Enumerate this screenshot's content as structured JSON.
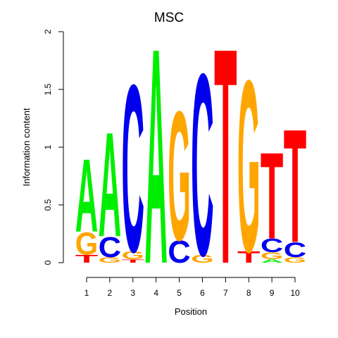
{
  "chart_data": {
    "type": "sequence-logo",
    "title": "MSC",
    "xlabel": "Position",
    "ylabel": "Information content",
    "ylim": [
      0,
      2
    ],
    "yticks": [
      "0",
      "0.5",
      "1",
      "1.5",
      "2"
    ],
    "ytick_values": [
      0,
      0.5,
      1,
      1.5,
      2
    ],
    "xticks": [
      "1",
      "2",
      "3",
      "4",
      "5",
      "6",
      "7",
      "8",
      "9",
      "10"
    ],
    "colors": {
      "A": "#00ee00",
      "C": "#0000ee",
      "G": "#ffa500",
      "T": "#ff0000"
    },
    "positions": [
      {
        "position": 1,
        "letters": [
          {
            "base": "T",
            "height": 0.07
          },
          {
            "base": "G",
            "height": 0.2
          },
          {
            "base": "A",
            "height": 0.65
          }
        ]
      },
      {
        "position": 2,
        "letters": [
          {
            "base": "G",
            "height": 0.05
          },
          {
            "base": "C",
            "height": 0.18
          },
          {
            "base": "A",
            "height": 0.93
          }
        ]
      },
      {
        "position": 3,
        "letters": [
          {
            "base": "T",
            "height": 0.03
          },
          {
            "base": "G",
            "height": 0.07
          },
          {
            "base": "C",
            "height": 1.49
          }
        ]
      },
      {
        "position": 4,
        "letters": [
          {
            "base": "A",
            "height": 1.92
          }
        ]
      },
      {
        "position": 5,
        "letters": [
          {
            "base": "C",
            "height": 0.2
          },
          {
            "base": "G",
            "height": 1.15
          }
        ]
      },
      {
        "position": 6,
        "letters": [
          {
            "base": "G",
            "height": 0.07
          },
          {
            "base": "C",
            "height": 1.62
          }
        ]
      },
      {
        "position": 7,
        "letters": [
          {
            "base": "T",
            "height": 1.92
          }
        ]
      },
      {
        "position": 8,
        "letters": [
          {
            "base": "T",
            "height": 0.1
          },
          {
            "base": "G",
            "height": 1.53
          }
        ]
      },
      {
        "position": 9,
        "letters": [
          {
            "base": "A",
            "height": 0.03
          },
          {
            "base": "G",
            "height": 0.06
          },
          {
            "base": "C",
            "height": 0.12
          },
          {
            "base": "T",
            "height": 0.77
          }
        ]
      },
      {
        "position": 10,
        "letters": [
          {
            "base": "G",
            "height": 0.05
          },
          {
            "base": "C",
            "height": 0.13
          },
          {
            "base": "T",
            "height": 1.01
          }
        ]
      }
    ]
  }
}
